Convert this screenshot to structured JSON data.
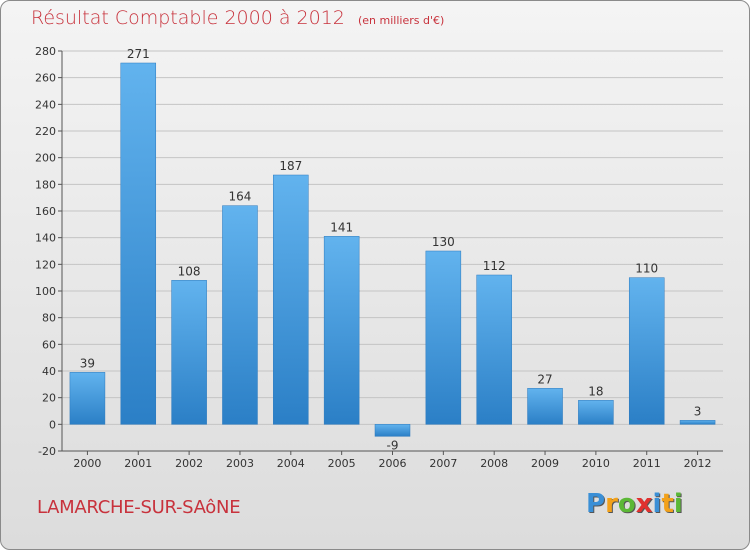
{
  "chart_data": {
    "type": "bar",
    "title": "Résultat Comptable 2000 à 2012",
    "subtitle": "(en milliers d'€)",
    "xlabel": "",
    "ylabel": "",
    "categories": [
      "2000",
      "2001",
      "2002",
      "2003",
      "2004",
      "2005",
      "2006",
      "2007",
      "2008",
      "2009",
      "2010",
      "2011",
      "2012"
    ],
    "values": [
      39,
      271,
      108,
      164,
      187,
      141,
      -9,
      130,
      112,
      27,
      18,
      110,
      3
    ],
    "value_labels": [
      "39",
      "271",
      "108",
      "164",
      "187",
      "141",
      "-9",
      "130",
      "112",
      "27",
      "18",
      "110",
      "3"
    ],
    "ylim": [
      -20,
      280
    ],
    "yticks": [
      -20,
      0,
      20,
      40,
      60,
      80,
      100,
      120,
      140,
      160,
      180,
      200,
      220,
      240,
      260,
      280
    ],
    "grid": true,
    "bar_color": "#4ea3e3"
  },
  "location": "LAMARCHE-SUR-SAôNE",
  "logo": {
    "letters": [
      "P",
      "r",
      "o",
      "x",
      "i",
      "t",
      "i"
    ],
    "colors": [
      "#3a8fd6",
      "#f2a11a",
      "#5cb836",
      "#e0312f",
      "#3a8fd6",
      "#f2a11a",
      "#5cb836"
    ]
  }
}
